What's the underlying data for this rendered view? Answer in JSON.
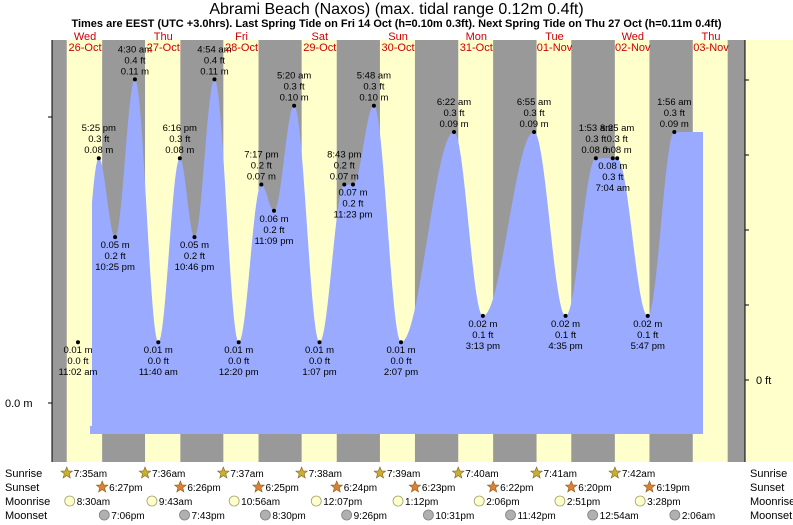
{
  "title": "Abrami Beach (Naxos) (max. tidal range 0.12m 0.4ft)",
  "subtitle": "Times are EEST (UTC +3.0hrs). Last Spring Tide on Fri 14 Oct (h=0.10m 0.3ft). Next Spring Tide on Thu 27 Oct (h=0.11m 0.4ft)",
  "colors": {
    "tide_fill": "#99aaff",
    "night": "#999999",
    "day": "#ffffcc",
    "day_label": "#cc0000",
    "sunrise_star": "#c8b030",
    "sunset_star": "#e08030",
    "moonrise_dot": "#ffffcc",
    "moonset_dot": "#b0b0b0"
  },
  "chart_data": {
    "type": "area",
    "series_name": "",
    "left_axis": {
      "label": "0.0 m",
      "value_m": 0.0
    },
    "right_axis": {
      "label": "0 ft",
      "value_ft": 0
    },
    "y_range_m": [
      -0.012,
      0.125
    ],
    "days": [
      {
        "weekday": "Wed",
        "date": "26-Oct"
      },
      {
        "weekday": "Thu",
        "date": "27-Oct"
      },
      {
        "weekday": "Fri",
        "date": "28-Oct"
      },
      {
        "weekday": "Sat",
        "date": "29-Oct"
      },
      {
        "weekday": "Sun",
        "date": "30-Oct"
      },
      {
        "weekday": "Mon",
        "date": "31-Oct"
      },
      {
        "weekday": "Tue",
        "date": "01-Nov"
      },
      {
        "weekday": "Wed",
        "date": "02-Nov"
      },
      {
        "weekday": "Thu",
        "date": "03-Nov"
      }
    ],
    "tides": [
      {
        "kind": "low",
        "time": "11:02 am",
        "m": "0.01 m",
        "ft": "0.0 ft",
        "value_m": 0.01
      },
      {
        "kind": "high",
        "time": "5:25 pm",
        "m": "0.08 m",
        "ft": "0.3 ft",
        "value_m": 0.08
      },
      {
        "kind": "low",
        "time": "10:25 pm",
        "m": "0.05 m",
        "ft": "0.2 ft",
        "value_m": 0.05
      },
      {
        "kind": "high",
        "time": "4:30 am",
        "m": "0.11 m",
        "ft": "0.4 ft",
        "value_m": 0.11
      },
      {
        "kind": "low",
        "time": "11:40 am",
        "m": "0.01 m",
        "ft": "0.0 ft",
        "value_m": 0.01
      },
      {
        "kind": "high",
        "time": "6:16 pm",
        "m": "0.08 m",
        "ft": "0.3 ft",
        "value_m": 0.08
      },
      {
        "kind": "low",
        "time": "10:46 pm",
        "m": "0.05 m",
        "ft": "0.2 ft",
        "value_m": 0.05
      },
      {
        "kind": "high",
        "time": "4:54 am",
        "m": "0.11 m",
        "ft": "0.4 ft",
        "value_m": 0.11
      },
      {
        "kind": "low",
        "time": "12:20 pm",
        "m": "0.01 m",
        "ft": "0.0 ft",
        "value_m": 0.01
      },
      {
        "kind": "high",
        "time": "7:17 pm",
        "m": "0.07 m",
        "ft": "0.2 ft",
        "value_m": 0.07
      },
      {
        "kind": "low",
        "time": "11:09 pm",
        "m": "0.06 m",
        "ft": "0.2 ft",
        "value_m": 0.06
      },
      {
        "kind": "high",
        "time": "5:20 am",
        "m": "0.10 m",
        "ft": "0.3 ft",
        "value_m": 0.1
      },
      {
        "kind": "low",
        "time": "1:07 pm",
        "m": "0.01 m",
        "ft": "0.0 ft",
        "value_m": 0.01
      },
      {
        "kind": "high",
        "time": "8:43 pm",
        "m": "0.07 m",
        "ft": "0.2 ft",
        "value_m": 0.07
      },
      {
        "kind": "low",
        "time": "11:23 pm",
        "m": "0.07 m",
        "ft": "0.2 ft",
        "value_m": 0.07
      },
      {
        "kind": "high",
        "time": "5:48 am",
        "m": "0.10 m",
        "ft": "0.3 ft",
        "value_m": 0.1
      },
      {
        "kind": "low",
        "time": "2:07 pm",
        "m": "0.01 m",
        "ft": "0.0 ft",
        "value_m": 0.01
      },
      {
        "kind": "high",
        "time": "6:22 am",
        "m": "0.09 m",
        "ft": "0.3 ft",
        "value_m": 0.09
      },
      {
        "kind": "low",
        "time": "3:13 pm",
        "m": "0.02 m",
        "ft": "0.1 ft",
        "value_m": 0.02
      },
      {
        "kind": "high",
        "time": "6:55 am",
        "m": "0.09 m",
        "ft": "0.3 ft",
        "value_m": 0.09
      },
      {
        "kind": "low",
        "time": "4:35 pm",
        "m": "0.02 m",
        "ft": "0.1 ft",
        "value_m": 0.02
      },
      {
        "kind": "high",
        "time": "1:53 am",
        "m": "0.08 m",
        "ft": "0.3 ft",
        "value_m": 0.08
      },
      {
        "kind": "high",
        "time": "8:25 am",
        "m": "0.08 m",
        "ft": "0.3 ft",
        "value_m": 0.08
      },
      {
        "kind": "low",
        "time": "7:04 am",
        "m": "0.08 m",
        "ft": "0.3 ft",
        "value_m": 0.08
      },
      {
        "kind": "low",
        "time": "5:47 pm",
        "m": "0.02 m",
        "ft": "0.1 ft",
        "value_m": 0.02
      },
      {
        "kind": "high",
        "time": "1:56 am",
        "m": "0.09 m",
        "ft": "0.3 ft",
        "value_m": 0.09
      }
    ]
  },
  "astro": {
    "row_labels": [
      "Sunrise",
      "Sunset",
      "Moonrise",
      "Moonset"
    ],
    "sunrise": [
      "7:35am",
      "7:36am",
      "7:37am",
      "7:38am",
      "7:39am",
      "7:40am",
      "7:41am",
      "7:42am"
    ],
    "sunset": [
      "6:27pm",
      "6:26pm",
      "6:25pm",
      "6:24pm",
      "6:23pm",
      "6:22pm",
      "6:20pm",
      "6:19pm"
    ],
    "moonrise": [
      "8:30am",
      "9:43am",
      "10:56am",
      "12:07pm",
      "1:12pm",
      "2:06pm",
      "2:51pm",
      "3:28pm"
    ],
    "moonset": [
      "7:06pm",
      "7:43pm",
      "8:30pm",
      "9:26pm",
      "10:31pm",
      "11:42pm",
      "12:54am",
      "2:06am"
    ]
  }
}
